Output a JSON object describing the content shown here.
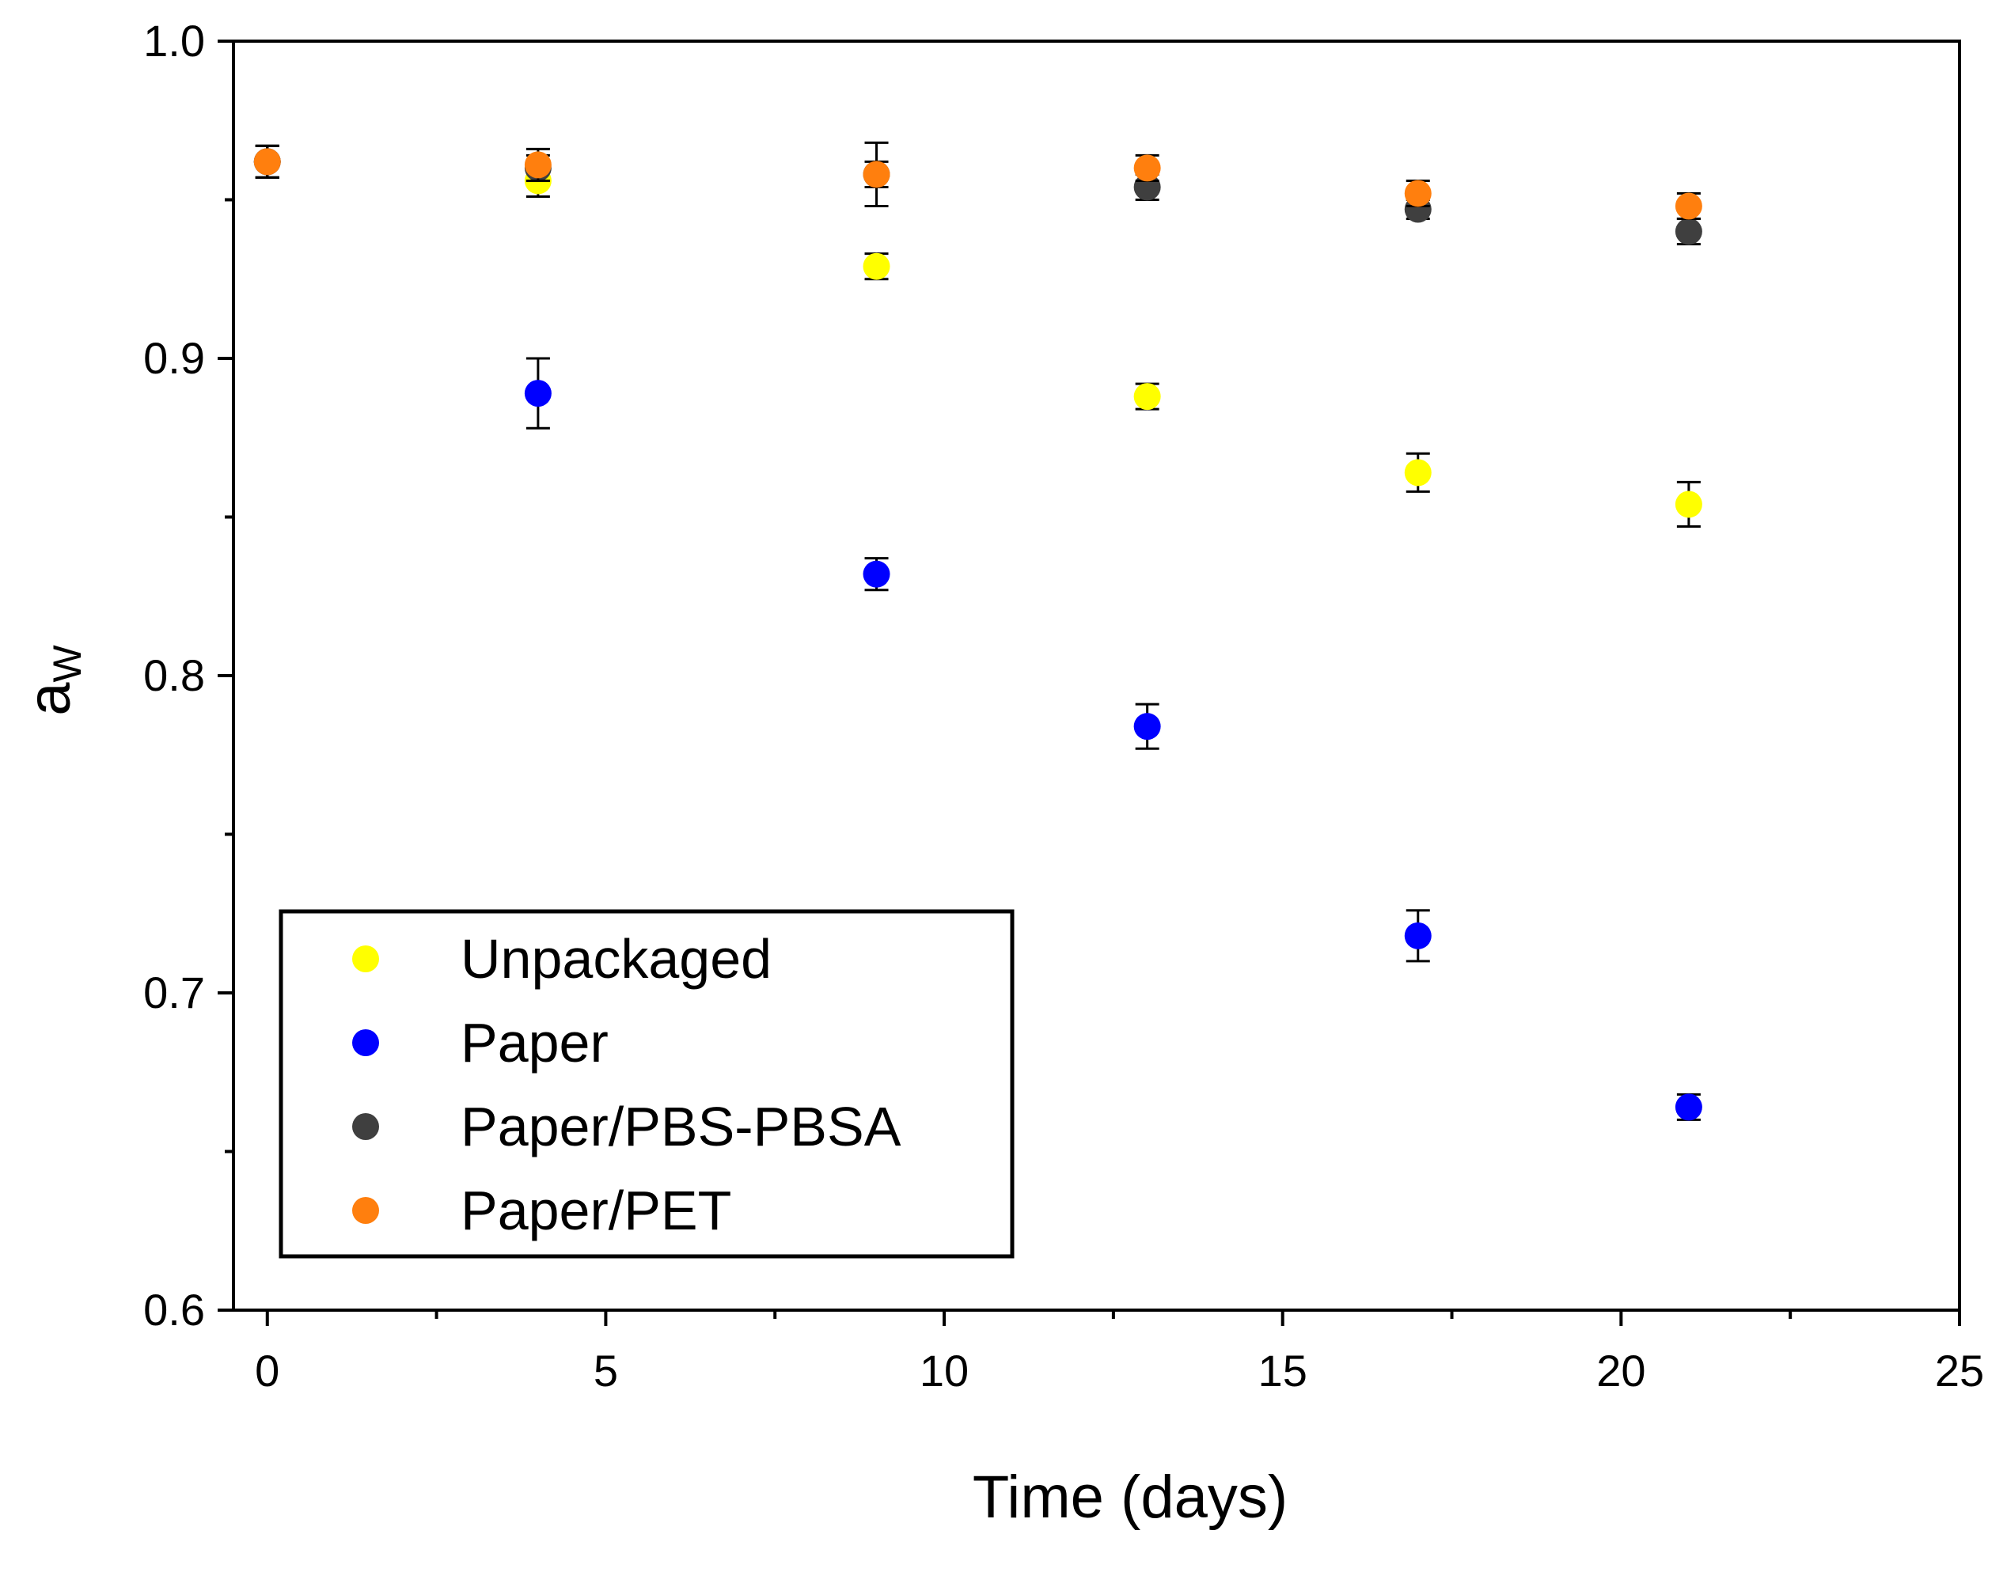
{
  "chart_data": {
    "type": "scatter",
    "title": "",
    "xlabel": "Time (days)",
    "ylabel": {
      "main": "a",
      "sub": "W"
    },
    "xlim": [
      -0.5,
      25
    ],
    "ylim": [
      0.6,
      1.0
    ],
    "x_ticks": [
      0,
      5,
      10,
      15,
      20,
      25
    ],
    "x_tick_labels": [
      "0",
      "5",
      "10",
      "15",
      "20",
      "25"
    ],
    "x_minor_ticks": [
      2.5,
      7.5,
      12.5,
      17.5,
      22.5
    ],
    "y_ticks": [
      0.6,
      0.7,
      0.8,
      0.9,
      1.0
    ],
    "y_tick_labels": [
      "0.6",
      "0.7",
      "0.8",
      "0.9",
      "1.0"
    ],
    "y_minor_ticks": [
      0.65,
      0.75,
      0.85,
      0.95
    ],
    "grid": false,
    "legend_position": "bottom-left",
    "series": [
      {
        "name": "Unpackaged",
        "color": "#ffff00",
        "x": [
          0,
          4,
          9,
          13,
          17,
          21
        ],
        "y": [
          0.962,
          0.956,
          0.929,
          0.888,
          0.864,
          0.854
        ],
        "err": [
          0.005,
          0.005,
          0.004,
          0.004,
          0.006,
          0.007
        ]
      },
      {
        "name": "Paper",
        "color": "#0000ff",
        "x": [
          0,
          4,
          9,
          13,
          17,
          21
        ],
        "y": [
          0.962,
          0.889,
          0.832,
          0.784,
          0.718,
          0.664
        ],
        "err": [
          0.005,
          0.011,
          0.005,
          0.007,
          0.008,
          0.004
        ]
      },
      {
        "name": "Paper/PBS-PBSA",
        "color": "#3f3f3f",
        "x": [
          0,
          4,
          9,
          13,
          17,
          21
        ],
        "y": [
          0.962,
          0.96,
          0.958,
          0.954,
          0.947,
          0.94
        ],
        "err": [
          0.005,
          0.004,
          0.01,
          0.004,
          0.003,
          0.004
        ]
      },
      {
        "name": "Paper/PET",
        "color": "#ff7f0e",
        "x": [
          0,
          4,
          9,
          13,
          17,
          21
        ],
        "y": [
          0.962,
          0.961,
          0.958,
          0.96,
          0.952,
          0.948
        ],
        "err": [
          0.005,
          0.005,
          0.004,
          0.004,
          0.004,
          0.004
        ]
      }
    ]
  }
}
